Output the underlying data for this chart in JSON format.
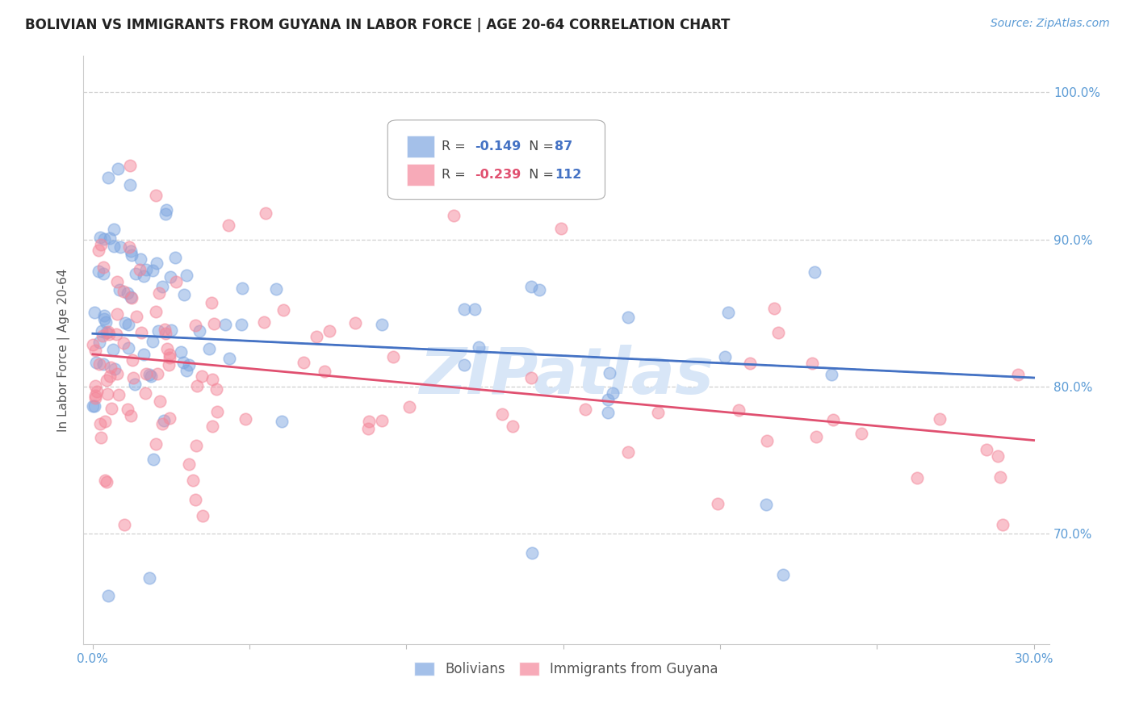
{
  "title": "BOLIVIAN VS IMMIGRANTS FROM GUYANA IN LABOR FORCE | AGE 20-64 CORRELATION CHART",
  "source": "Source: ZipAtlas.com",
  "ylabel": "In Labor Force | Age 20-64",
  "xlim": [
    -0.003,
    0.305
  ],
  "ylim": [
    0.625,
    1.025
  ],
  "yticks": [
    0.7,
    0.8,
    0.9,
    1.0
  ],
  "ytick_labels": [
    "70.0%",
    "80.0%",
    "90.0%",
    "100.0%"
  ],
  "xticks": [
    0.0,
    0.05,
    0.1,
    0.15,
    0.2,
    0.25,
    0.3
  ],
  "xtick_labels": [
    "0.0%",
    "",
    "",
    "",
    "",
    "",
    "30.0%"
  ],
  "bolivians_R": -0.149,
  "bolivians_N": 87,
  "guyana_R": -0.239,
  "guyana_N": 112,
  "blue_color": "#7ea6e0",
  "pink_color": "#f4879a",
  "blue_line_color": "#4472c4",
  "pink_line_color": "#e05070",
  "watermark_color": "#d8e6f7",
  "watermark_text": "ZIPatlas",
  "background_color": "#ffffff",
  "grid_color": "#d0d0d0",
  "tick_label_color": "#5b9bd5",
  "title_color": "#222222",
  "legend_R_blue": "#4472c4",
  "legend_R_pink": "#e05070",
  "legend_N_color": "#4472c4"
}
